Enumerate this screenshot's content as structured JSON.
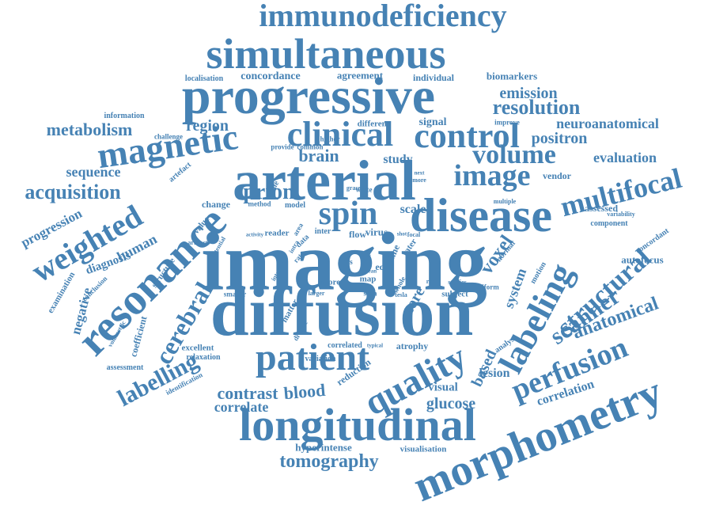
{
  "color": "#4682b4",
  "words": [
    {
      "t": "imaging"
    },
    {
      "t": "diffusion"
    },
    {
      "t": "arterial"
    },
    {
      "t": "progressive"
    },
    {
      "t": "disease"
    },
    {
      "t": "longitudinal"
    },
    {
      "t": "morphometry"
    },
    {
      "t": "resonance"
    },
    {
      "t": "simultaneous"
    },
    {
      "t": "immunodeficiency"
    },
    {
      "t": "magnetic"
    },
    {
      "t": "patient"
    },
    {
      "t": "clinical"
    },
    {
      "t": "control"
    },
    {
      "t": "quality"
    },
    {
      "t": "spin"
    },
    {
      "t": "labeling"
    },
    {
      "t": "perfusion"
    },
    {
      "t": "image"
    },
    {
      "t": "multifocal"
    },
    {
      "t": "weighted"
    },
    {
      "t": "volume"
    },
    {
      "t": "structural"
    },
    {
      "t": "cerebral"
    },
    {
      "t": "labelling"
    },
    {
      "t": "scanner"
    },
    {
      "t": "acquisition"
    },
    {
      "t": "anatomical"
    },
    {
      "t": "tomography"
    },
    {
      "t": "resolution"
    },
    {
      "t": "metabolism"
    },
    {
      "t": "prion"
    },
    {
      "t": "emission"
    },
    {
      "t": "neuroanatomical"
    },
    {
      "t": "positron"
    },
    {
      "t": "evaluation"
    },
    {
      "t": "contrast"
    },
    {
      "t": "correlate"
    },
    {
      "t": "blood"
    },
    {
      "t": "glucose"
    },
    {
      "t": "voxel"
    },
    {
      "t": "based"
    },
    {
      "t": "correlation"
    },
    {
      "t": "brain"
    },
    {
      "t": "region"
    },
    {
      "t": "sequence"
    },
    {
      "t": "progression"
    },
    {
      "t": "human"
    },
    {
      "t": "diagnosis"
    },
    {
      "t": "negative"
    },
    {
      "t": "system"
    },
    {
      "t": "core"
    },
    {
      "t": "lesion"
    },
    {
      "t": "visual"
    },
    {
      "t": "concordance"
    },
    {
      "t": "agreement"
    },
    {
      "t": "individual"
    },
    {
      "t": "biomarkers"
    },
    {
      "t": "localisation"
    },
    {
      "t": "study"
    },
    {
      "t": "scale"
    },
    {
      "t": "signal"
    },
    {
      "t": "different"
    },
    {
      "t": "vendor"
    },
    {
      "t": "assessed"
    },
    {
      "t": "autofocus"
    },
    {
      "t": "component"
    },
    {
      "t": "concordant"
    },
    {
      "t": "variability"
    },
    {
      "t": "hyperintense"
    },
    {
      "t": "visualisation"
    },
    {
      "t": "correlated"
    },
    {
      "t": "atrophy"
    },
    {
      "t": "reduction"
    },
    {
      "t": "variation"
    },
    {
      "t": "relaxation"
    },
    {
      "t": "identification"
    },
    {
      "t": "assessment"
    },
    {
      "t": "excellent"
    },
    {
      "t": "coefficient"
    },
    {
      "t": "volumetric"
    },
    {
      "t": "examination"
    },
    {
      "t": "conclusion"
    },
    {
      "t": "information"
    },
    {
      "t": "challenge"
    },
    {
      "t": "artefact"
    },
    {
      "t": "change"
    },
    {
      "t": "model"
    },
    {
      "t": "method"
    },
    {
      "t": "tissue"
    },
    {
      "t": "value"
    },
    {
      "t": "structure"
    },
    {
      "t": "provide"
    },
    {
      "t": "common"
    },
    {
      "t": "higher"
    },
    {
      "t": "improve"
    },
    {
      "t": "multiple"
    },
    {
      "t": "virus"
    },
    {
      "t": "flow"
    },
    {
      "t": "inter"
    },
    {
      "t": "reader"
    },
    {
      "t": "echo"
    },
    {
      "t": "time"
    },
    {
      "t": "rater"
    },
    {
      "t": "normal"
    },
    {
      "t": "motion"
    },
    {
      "t": "score"
    },
    {
      "t": "result"
    },
    {
      "t": "subject"
    },
    {
      "t": "uniform"
    },
    {
      "t": "analyse"
    },
    {
      "t": "smaller"
    },
    {
      "t": "matter"
    },
    {
      "t": "whole"
    },
    {
      "t": "studies"
    },
    {
      "t": "ratio"
    },
    {
      "t": "map"
    },
    {
      "t": "loss"
    },
    {
      "t": "white"
    },
    {
      "t": "grase"
    },
    {
      "t": "rate"
    },
    {
      "t": "data"
    },
    {
      "t": "area"
    },
    {
      "t": "potential"
    },
    {
      "t": "activity"
    },
    {
      "t": "artifact"
    },
    {
      "t": "diverse"
    },
    {
      "t": "tesla"
    },
    {
      "t": "larger"
    },
    {
      "t": "scan"
    },
    {
      "t": "typical"
    },
    {
      "t": "interval"
    },
    {
      "t": "focal"
    },
    {
      "t": "shot"
    },
    {
      "t": "more"
    },
    {
      "t": "next"
    },
    {
      "t": "mean"
    },
    {
      "t": "high"
    },
    {
      "t": "intra"
    }
  ]
}
